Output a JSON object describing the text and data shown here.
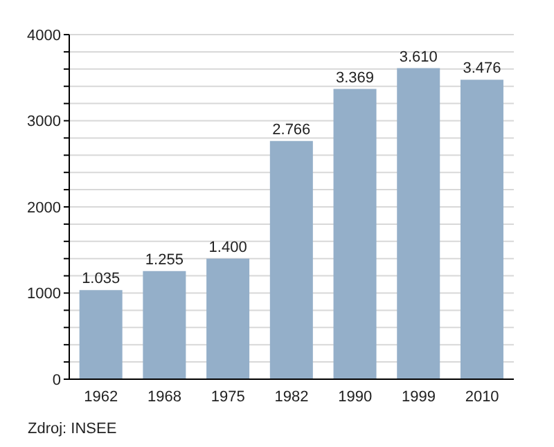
{
  "chart_data": {
    "type": "bar",
    "categories": [
      "1962",
      "1968",
      "1975",
      "1982",
      "1990",
      "1999",
      "2010"
    ],
    "values": [
      1035,
      1255,
      1400,
      2766,
      3369,
      3610,
      3476
    ],
    "value_labels": [
      "1.035",
      "1.255",
      "1.400",
      "2.766",
      "3.369",
      "3.610",
      "3.476"
    ],
    "color": "#94afc9",
    "ylim": [
      0,
      4000
    ],
    "yticks": [
      0,
      {
        "value": 200,
        "label": null
      },
      {
        "value": 400,
        "label": null
      },
      {
        "value": 600,
        "label": null
      },
      {
        "value": 800,
        "label": null
      },
      1000,
      {
        "value": 1200,
        "label": null
      },
      {
        "value": 1400,
        "label": null
      },
      {
        "value": 1600,
        "label": null
      },
      {
        "value": 1800,
        "label": null
      },
      2000,
      {
        "value": 2200,
        "label": null
      },
      {
        "value": 2400,
        "label": null
      },
      {
        "value": 2600,
        "label": null
      },
      {
        "value": 2800,
        "label": null
      },
      3000,
      {
        "value": 3200,
        "label": null
      },
      {
        "value": 3400,
        "label": null
      },
      {
        "value": 3600,
        "label": null
      },
      {
        "value": 3800,
        "label": null
      },
      4000
    ],
    "grid": "y",
    "annotations": [
      "Zdroj: INSEE"
    ]
  }
}
